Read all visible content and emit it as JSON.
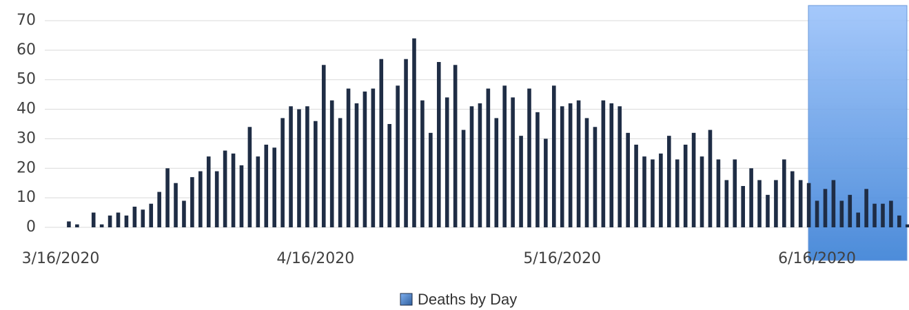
{
  "chart_data": {
    "type": "bar",
    "categories": [
      "3/16/2020",
      null,
      null,
      null,
      null,
      null,
      null,
      null,
      null,
      null,
      null,
      null,
      null,
      null,
      null,
      null,
      null,
      null,
      null,
      null,
      null,
      null,
      null,
      null,
      null,
      null,
      null,
      null,
      null,
      null,
      null,
      "4/16/2020",
      null,
      null,
      null,
      null,
      null,
      null,
      null,
      null,
      null,
      null,
      null,
      null,
      null,
      null,
      null,
      null,
      null,
      null,
      null,
      null,
      null,
      null,
      null,
      null,
      null,
      null,
      null,
      null,
      null,
      "5/16/2020",
      null,
      null,
      null,
      null,
      null,
      null,
      null,
      null,
      null,
      null,
      null,
      null,
      null,
      null,
      null,
      null,
      null,
      null,
      null,
      null,
      null,
      null,
      null,
      null,
      null,
      null,
      null,
      null,
      null,
      null,
      "6/16/2020",
      null,
      null,
      null,
      null,
      null,
      null,
      null,
      null,
      null,
      null,
      null
    ],
    "series": [
      {
        "name": "Deaths by Day",
        "color": "#1f2d45",
        "values": [
          0,
          2,
          1,
          0,
          5,
          1,
          4,
          5,
          4,
          7,
          6,
          8,
          12,
          20,
          15,
          9,
          17,
          19,
          24,
          19,
          26,
          25,
          21,
          34,
          24,
          28,
          27,
          37,
          41,
          40,
          41,
          36,
          55,
          43,
          37,
          47,
          42,
          46,
          47,
          57,
          35,
          48,
          57,
          64,
          43,
          32,
          56,
          44,
          55,
          33,
          41,
          42,
          47,
          37,
          48,
          44,
          31,
          47,
          39,
          30,
          48,
          41,
          42,
          43,
          37,
          34,
          43,
          42,
          41,
          32,
          28,
          24,
          23,
          25,
          31,
          23,
          28,
          32,
          24,
          33,
          23,
          16,
          23,
          14,
          20,
          16,
          11,
          16,
          23,
          19,
          16,
          15,
          9,
          13,
          16,
          9,
          11,
          5,
          13,
          8,
          8,
          9,
          4,
          1
        ]
      }
    ],
    "ylim": [
      0,
      70
    ],
    "yticks": [
      0,
      10,
      20,
      30,
      40,
      50,
      60,
      70
    ],
    "grid": true,
    "legend": "bottom"
  }
}
